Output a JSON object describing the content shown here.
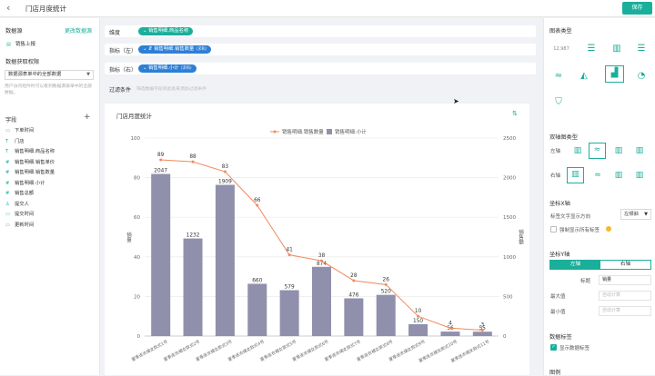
{
  "header": {
    "back_icon": "chevron-left-icon",
    "title": "门店月度统计",
    "save_label": "保存"
  },
  "left": {
    "datasource_label": "数据源",
    "change_link": "更改数据源",
    "datasource_item": "销售上报",
    "permission_label": "数据获取权限",
    "permission_value": "数据源表单中的全部数据",
    "permission_hint": "用户访问组件时可以看到数据源表单中的全部数据。",
    "fields_label": "字段",
    "fields": [
      {
        "icon": "date-icon",
        "glyph": "▭",
        "label": "下单时间"
      },
      {
        "icon": "text-icon",
        "glyph": "T",
        "label": "门店"
      },
      {
        "icon": "text-icon",
        "glyph": "T",
        "label": "销售明细.商品名称"
      },
      {
        "icon": "number-icon",
        "glyph": "#",
        "label": "销售明细.销售单价"
      },
      {
        "icon": "number-icon",
        "glyph": "#",
        "label": "销售明细.销售数量"
      },
      {
        "icon": "number-icon",
        "glyph": "#",
        "label": "销售明细.小计"
      },
      {
        "icon": "number-icon",
        "glyph": "#",
        "label": "销售总额"
      },
      {
        "icon": "user-icon",
        "glyph": "♙",
        "label": "提交人"
      },
      {
        "icon": "date-icon",
        "glyph": "▭",
        "label": "提交时间"
      },
      {
        "icon": "date-icon",
        "glyph": "▭",
        "label": "更新时间"
      }
    ]
  },
  "config": {
    "dimension_label": "维度",
    "dimension_chip": "销售明细.商品名称",
    "metric_left_label": "指标（左）",
    "metric_left_chip": "销售明细.销售数量",
    "metric_left_agg": "(求和)",
    "metric_right_label": "指标（右）",
    "metric_right_chip": "销售明细.小计",
    "metric_right_agg": "(求和)",
    "filter_label": "过滤条件",
    "filter_placeholder": "筛选数据字段到此处来添加过滤条件"
  },
  "chart_card": {
    "title": "门店月度统计"
  },
  "chart_data": {
    "type": "bar-line-dual-axis",
    "categories": [
      "夏季连衣裙女款式1号",
      "夏季连衣裙女款式2号",
      "夏季连衣裙女款式3号",
      "夏季连衣裙女款式4号",
      "夏季连衣裙女款式5号",
      "夏季连衣裙女款式6号",
      "夏季连衣裙女款式7号",
      "夏季连衣裙女款式8号",
      "夏季连衣裙女款式9号",
      "夏季连衣裙女款式10号",
      "夏季连衣裙女款式11号"
    ],
    "series": [
      {
        "name": "销售明细.销售数量",
        "type": "line",
        "axis": "left",
        "color": "#f08a5d",
        "values": [
          89,
          88,
          83,
          66,
          41,
          38,
          28,
          26,
          10,
          4,
          3
        ]
      },
      {
        "name": "销售明细.小计",
        "type": "bar",
        "axis": "right",
        "color": "#9090ad",
        "values": [
          2047,
          1232,
          1909,
          660,
          579,
          874,
          476,
          520,
          150,
          56,
          55
        ]
      }
    ],
    "ylabel_left": "销量",
    "ylabel_right": "销售额",
    "ylim_left": [
      0,
      100
    ],
    "yticks_left": [
      "0",
      "20",
      "40",
      "60",
      "80",
      "100"
    ],
    "ylim_right": [
      0,
      2500
    ],
    "yticks_right": [
      "0",
      "500",
      "1000",
      "1500",
      "2000",
      "2500"
    ],
    "legend_position": "top-center"
  },
  "right": {
    "chart_type_label": "图表类型",
    "chart_types": [
      {
        "icon": "number-card-icon",
        "glyph": "12,987"
      },
      {
        "icon": "table-icon",
        "glyph": "☰"
      },
      {
        "icon": "column-chart-icon",
        "glyph": "▥"
      },
      {
        "icon": "bar-chart-icon",
        "glyph": "☰"
      },
      {
        "icon": "line-chart-icon",
        "glyph": "≈"
      },
      {
        "icon": "area-chart-icon",
        "glyph": "◭"
      },
      {
        "icon": "dual-axis-chart-icon",
        "glyph": "▟"
      },
      {
        "icon": "pie-chart-icon",
        "glyph": "◔"
      },
      {
        "icon": "funnel-chart-icon",
        "glyph": "⛉"
      }
    ],
    "dual_axis_label": "双轴图类型",
    "left_axis_label": "左轴",
    "right_axis_label": "右轴",
    "x_axis_label": "坐标X轴",
    "x_label_dir_label": "标签文字显示方向",
    "x_label_dir_value": "左倾斜",
    "force_labels": "强制显示所有标签",
    "y_axis_label": "坐标Y轴",
    "tab_left": "左轴",
    "tab_right": "右轴",
    "y_title_label": "标题",
    "y_title_value": "销量",
    "y_max_label": "最大值",
    "y_min_label": "最小值",
    "auto_placeholder": "自动计算",
    "data_label_section": "数据标签",
    "show_data_labels": "显示数据标签",
    "legend_section": "图例"
  }
}
